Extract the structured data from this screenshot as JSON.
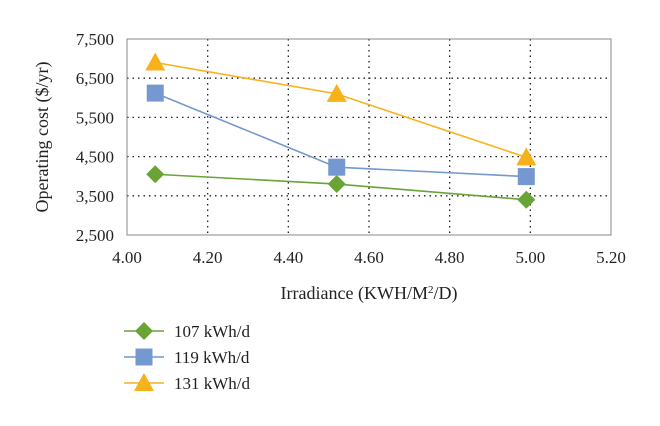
{
  "chart_data": {
    "type": "line",
    "title": "",
    "xlabel": {
      "before": "Irradiance (KWH/M",
      "sup": "2",
      "after": "/D)"
    },
    "ylabel": "Operating cost ($/yr)",
    "xlim": [
      4.0,
      5.2
    ],
    "ylim": [
      2500,
      7500
    ],
    "xticks": [
      4.0,
      4.2,
      4.4,
      4.6,
      4.8,
      5.0,
      5.2
    ],
    "xtick_labels": [
      "4.00",
      "4.20",
      "4.40",
      "4.60",
      "4.80",
      "5.00",
      "5.20"
    ],
    "yticks": [
      2500,
      3500,
      4500,
      5500,
      6500,
      7500
    ],
    "ytick_labels": [
      "2,500",
      "3,500",
      "4,500",
      "5,500",
      "6,500",
      "7,500"
    ],
    "grid": "dotted",
    "legend_position": "bottom-left",
    "series": [
      {
        "name": "107 kWh/d",
        "color": "#6aa436",
        "marker": "diamond",
        "x": [
          4.07,
          4.52,
          4.99
        ],
        "y": [
          4050,
          3800,
          3400
        ]
      },
      {
        "name": "119 kWh/d",
        "color": "#7498cf",
        "marker": "square",
        "x": [
          4.07,
          4.52,
          4.99
        ],
        "y": [
          6120,
          4230,
          3990
        ]
      },
      {
        "name": "131 kWh/d",
        "color": "#f7b21b",
        "marker": "triangle",
        "x": [
          4.07,
          4.52,
          4.99
        ],
        "y": [
          6900,
          6100,
          4480
        ]
      }
    ]
  }
}
